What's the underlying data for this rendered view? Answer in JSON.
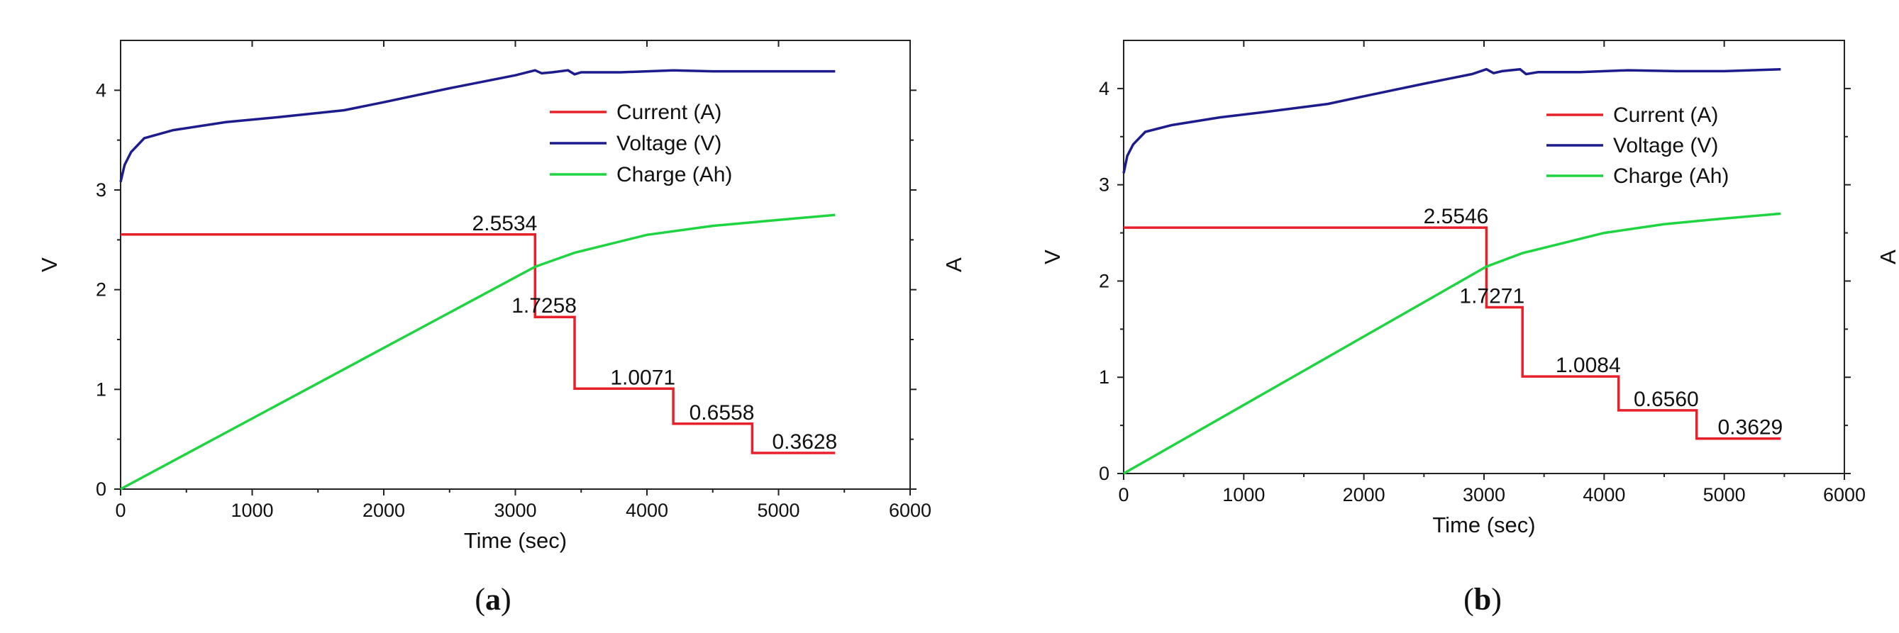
{
  "chart_data": [
    {
      "type": "line",
      "panel_label": "(a)",
      "xlabel": "Time (sec)",
      "ylabel_left": "V",
      "ylabel_right": "A",
      "xlim": [
        0,
        6000
      ],
      "ylim": [
        0,
        4.5
      ],
      "x_ticks": [
        "0",
        "1000",
        "2000",
        "3000",
        "4000",
        "5000",
        "6000"
      ],
      "y_ticks": [
        "0",
        "1",
        "2",
        "3",
        "4"
      ],
      "legend": {
        "placement": "top-right",
        "entries": [
          "Current (A)",
          "Voltage (V)",
          "Charge (Ah)"
        ]
      },
      "series": [
        {
          "name": "Current (A)",
          "color": "#e8202a",
          "x": [
            0,
            3150,
            3150,
            3450,
            3450,
            4200,
            4200,
            4800,
            4800,
            5430
          ],
          "y": [
            2.5534,
            2.5534,
            1.7258,
            1.7258,
            1.0071,
            1.0071,
            0.6558,
            0.6558,
            0.3628,
            0.3628
          ]
        },
        {
          "name": "Voltage (V)",
          "color": "#1c1c8c",
          "x": [
            0,
            30,
            80,
            180,
            400,
            800,
            1200,
            1700,
            2000,
            2500,
            3000,
            3150,
            3200,
            3280,
            3400,
            3450,
            3500,
            3800,
            4200,
            4500,
            5000,
            5430
          ],
          "y": [
            3.08,
            3.25,
            3.38,
            3.52,
            3.6,
            3.68,
            3.73,
            3.8,
            3.88,
            4.02,
            4.15,
            4.2,
            4.17,
            4.18,
            4.2,
            4.16,
            4.18,
            4.18,
            4.2,
            4.19,
            4.19,
            4.19
          ]
        },
        {
          "name": "Charge (Ah)",
          "color": "#1fd441",
          "x": [
            0,
            3150,
            3450,
            4000,
            4500,
            5000,
            5430
          ],
          "y": [
            0,
            2.23,
            2.37,
            2.55,
            2.64,
            2.7,
            2.75
          ]
        }
      ],
      "annotations": [
        {
          "text": "2.5534",
          "x": 3150,
          "y": 2.5534
        },
        {
          "text": "1.7258",
          "x": 3450,
          "y": 1.7258
        },
        {
          "text": "1.0071",
          "x": 4200,
          "y": 1.0071
        },
        {
          "text": "0.6558",
          "x": 4800,
          "y": 0.6558
        },
        {
          "text": "0.3628",
          "x": 5430,
          "y": 0.3628
        }
      ]
    },
    {
      "type": "line",
      "panel_label": "(b)",
      "xlabel": "Time (sec)",
      "ylabel_left": "V",
      "ylabel_right": "A",
      "xlim": [
        0,
        6000
      ],
      "ylim": [
        0,
        4.5
      ],
      "x_ticks": [
        "0",
        "1000",
        "2000",
        "3000",
        "4000",
        "5000",
        "6000"
      ],
      "y_ticks": [
        "0",
        "1",
        "2",
        "3",
        "4"
      ],
      "legend": {
        "placement": "top-right",
        "entries": [
          "Current (A)",
          "Voltage (V)",
          "Charge (Ah)"
        ]
      },
      "series": [
        {
          "name": "Current (A)",
          "color": "#e8202a",
          "x": [
            0,
            3020,
            3020,
            3320,
            3320,
            4120,
            4120,
            4770,
            4770,
            5470
          ],
          "y": [
            2.5546,
            2.5546,
            1.7271,
            1.7271,
            1.0084,
            1.0084,
            0.656,
            0.656,
            0.3629,
            0.3629
          ]
        },
        {
          "name": "Voltage (V)",
          "color": "#1c1c8c",
          "x": [
            0,
            30,
            80,
            180,
            400,
            800,
            1200,
            1700,
            2000,
            2500,
            2900,
            3020,
            3080,
            3150,
            3300,
            3350,
            3450,
            3800,
            4200,
            4600,
            5000,
            5470
          ],
          "y": [
            3.12,
            3.3,
            3.42,
            3.55,
            3.62,
            3.7,
            3.76,
            3.84,
            3.92,
            4.05,
            4.15,
            4.2,
            4.16,
            4.18,
            4.2,
            4.15,
            4.17,
            4.17,
            4.19,
            4.18,
            4.18,
            4.2
          ]
        },
        {
          "name": "Charge (Ah)",
          "color": "#1fd441",
          "x": [
            0,
            3020,
            3320,
            4000,
            4500,
            5000,
            5470
          ],
          "y": [
            0,
            2.15,
            2.29,
            2.5,
            2.59,
            2.65,
            2.7
          ]
        }
      ],
      "annotations": [
        {
          "text": "2.5546",
          "x": 3020,
          "y": 2.5546
        },
        {
          "text": "1.7271",
          "x": 3320,
          "y": 1.7271
        },
        {
          "text": "1.0084",
          "x": 4120,
          "y": 1.0084
        },
        {
          "text": "0.6560",
          "x": 4770,
          "y": 0.656
        },
        {
          "text": "0.3629",
          "x": 5470,
          "y": 0.3629
        }
      ]
    }
  ]
}
